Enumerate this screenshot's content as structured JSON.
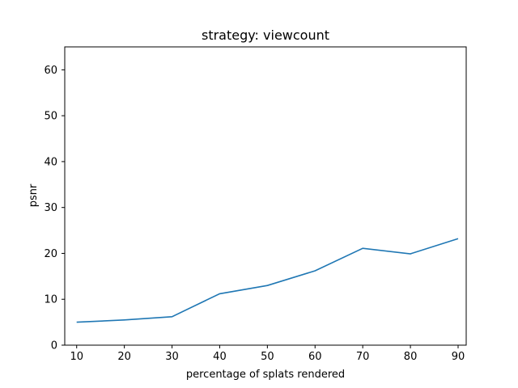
{
  "chart_data": {
    "type": "line",
    "title": "strategy: viewcount",
    "xlabel": "percentage of splats rendered",
    "ylabel": "psnr",
    "x": [
      10,
      20,
      30,
      40,
      50,
      60,
      70,
      80,
      90
    ],
    "series": [
      {
        "values": [
          5.0,
          5.5,
          6.2,
          11.2,
          13.0,
          16.2,
          21.1,
          19.9,
          23.2
        ],
        "color": "#1f77b4"
      }
    ],
    "xticks": [
      "10",
      "20",
      "30",
      "40",
      "50",
      "60",
      "70",
      "80",
      "90"
    ],
    "yticks": [
      "0",
      "10",
      "20",
      "30",
      "40",
      "50",
      "60"
    ],
    "xlim": [
      7.5,
      91.7
    ],
    "ylim": [
      0,
      65
    ],
    "grid": false,
    "legend": "none"
  }
}
